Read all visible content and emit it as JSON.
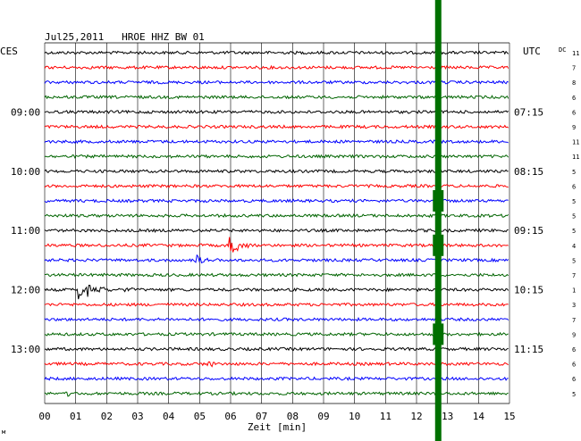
{
  "header": {
    "title": "Jul25,2011   HROE HHZ BW 01",
    "left_zone": "CES",
    "right_zone": "UTC",
    "dc_label": "DC"
  },
  "chart_data": {
    "type": "line",
    "title": "Jul25,2011   HROE HHZ BW 01",
    "xlabel": "Zeit [min]",
    "xlim": [
      0,
      15
    ],
    "x_ticks": [
      "00",
      "01",
      "02",
      "03",
      "04",
      "05",
      "06",
      "07",
      "08",
      "09",
      "10",
      "11",
      "12",
      "13",
      "14",
      "15"
    ],
    "grid": true,
    "trace_count": 24,
    "trace_colors": [
      "#000000",
      "#ff0000",
      "#0000ff",
      "#006400"
    ],
    "left_hour_labels": [
      {
        "trace": 4,
        "text": "09:00"
      },
      {
        "trace": 8,
        "text": "10:00"
      },
      {
        "trace": 12,
        "text": "11:00"
      },
      {
        "trace": 16,
        "text": "12:00"
      },
      {
        "trace": 20,
        "text": "13:00"
      }
    ],
    "right_hour_labels": [
      {
        "trace": 4,
        "text": "07:15"
      },
      {
        "trace": 8,
        "text": "08:15"
      },
      {
        "trace": 12,
        "text": "09:15"
      },
      {
        "trace": 16,
        "text": "10:15"
      },
      {
        "trace": 20,
        "text": "11:15"
      }
    ],
    "dc_values": [
      "11",
      "7",
      "8",
      "6",
      "6",
      "9",
      "11",
      "11",
      "5",
      "6",
      "5",
      "5",
      "5",
      "4",
      "5",
      "7",
      "1",
      "3",
      "7",
      "9",
      "6",
      "6",
      "6",
      "5"
    ],
    "events": [
      {
        "trace": 13,
        "time_min": 6.0,
        "amplitude": 12,
        "duration_min": 0.8
      },
      {
        "trace": 14,
        "time_min": 4.9,
        "amplitude": 6,
        "duration_min": 0.6
      },
      {
        "trace": 16,
        "time_min": 1.1,
        "amplitude": 13,
        "duration_min": 1.2
      },
      {
        "trace": 16,
        "time_min": 2.6,
        "amplitude": 4,
        "duration_min": 0.4
      },
      {
        "trace": 21,
        "time_min": 5.3,
        "amplitude": 5,
        "duration_min": 0.4
      },
      {
        "trace": 23,
        "time_min": 0.7,
        "amplitude": 4,
        "duration_min": 0.4
      }
    ],
    "vertical_marker": {
      "time_min": 12.7,
      "color": "#007000"
    },
    "footnote": "м"
  }
}
